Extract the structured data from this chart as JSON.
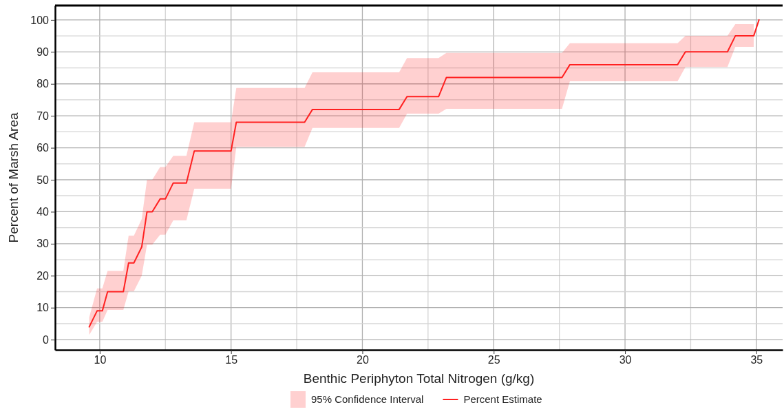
{
  "chart_data": {
    "type": "line",
    "xlabel": "Benthic Periphyton Total Nitrogen (g/kg)",
    "ylabel": "Percent of Marsh Area",
    "xlim": [
      8.3,
      36.0
    ],
    "ylim": [
      -3.2,
      104.5
    ],
    "xticks": [
      10,
      {
        "value": 12.5,
        "label": null
      },
      15,
      {
        "value": 17.5,
        "label": null
      },
      20,
      {
        "value": 22.5,
        "label": null
      },
      25,
      {
        "value": 27.5,
        "label": null
      },
      30,
      {
        "value": 32.5,
        "label": null
      },
      35
    ],
    "yticks": [
      0,
      {
        "value": 5,
        "label": null
      },
      10,
      {
        "value": 15,
        "label": null
      },
      20,
      {
        "value": 25,
        "label": null
      },
      30,
      {
        "value": 35,
        "label": null
      },
      40,
      {
        "value": 45,
        "label": null
      },
      50,
      {
        "value": 55,
        "label": null
      },
      60,
      {
        "value": 65,
        "label": null
      },
      70,
      {
        "value": 75,
        "label": null
      },
      80,
      {
        "value": 85,
        "label": null
      },
      90,
      {
        "value": 95,
        "label": null
      },
      100
    ],
    "grid": true,
    "legend": "bottom",
    "line_style": "solid",
    "marker": "none",
    "annotations": [
      "95% Confidence Interval"
    ],
    "series": [
      {
        "name": "Percent Estimate",
        "type": "line",
        "color": "#ff2020",
        "x": [
          9.6,
          9.9,
          10.1,
          10.3,
          10.9,
          11.1,
          11.3,
          11.6,
          11.8,
          12.0,
          12.3,
          12.5,
          12.8,
          13.3,
          13.6,
          15.0,
          15.2,
          17.8,
          18.1,
          21.4,
          21.7,
          22.9,
          23.2,
          27.6,
          27.9,
          32.0,
          32.3,
          33.9,
          34.2,
          34.9,
          35.1
        ],
        "values": [
          4,
          9,
          9,
          15,
          15,
          24,
          24,
          29,
          40,
          40,
          44,
          44,
          49,
          49,
          59,
          59,
          68,
          68,
          72,
          72,
          76,
          76,
          82,
          82,
          86,
          86,
          90,
          90,
          95,
          95,
          100
        ],
        "lower": [
          1.5,
          5.6,
          5.6,
          9.3,
          9.3,
          15.1,
          15.1,
          20,
          29.7,
          29.7,
          32.8,
          32.8,
          37.3,
          37.3,
          47.2,
          47.2,
          60.3,
          60.3,
          66.2,
          66.2,
          70.7,
          70.7,
          72.2,
          72.2,
          80.8,
          80.8,
          85.3,
          85.3,
          91.6,
          91.6,
          null
        ],
        "upper": [
          7,
          16,
          16,
          21.5,
          21.5,
          32.5,
          32.5,
          37.7,
          50,
          50,
          54,
          54,
          57.5,
          57.5,
          68,
          68,
          78.7,
          78.7,
          83.6,
          83.6,
          88.1,
          88.1,
          89.7,
          89.7,
          92.7,
          92.7,
          95,
          95,
          98.7,
          98.7,
          null
        ]
      }
    ]
  }
}
